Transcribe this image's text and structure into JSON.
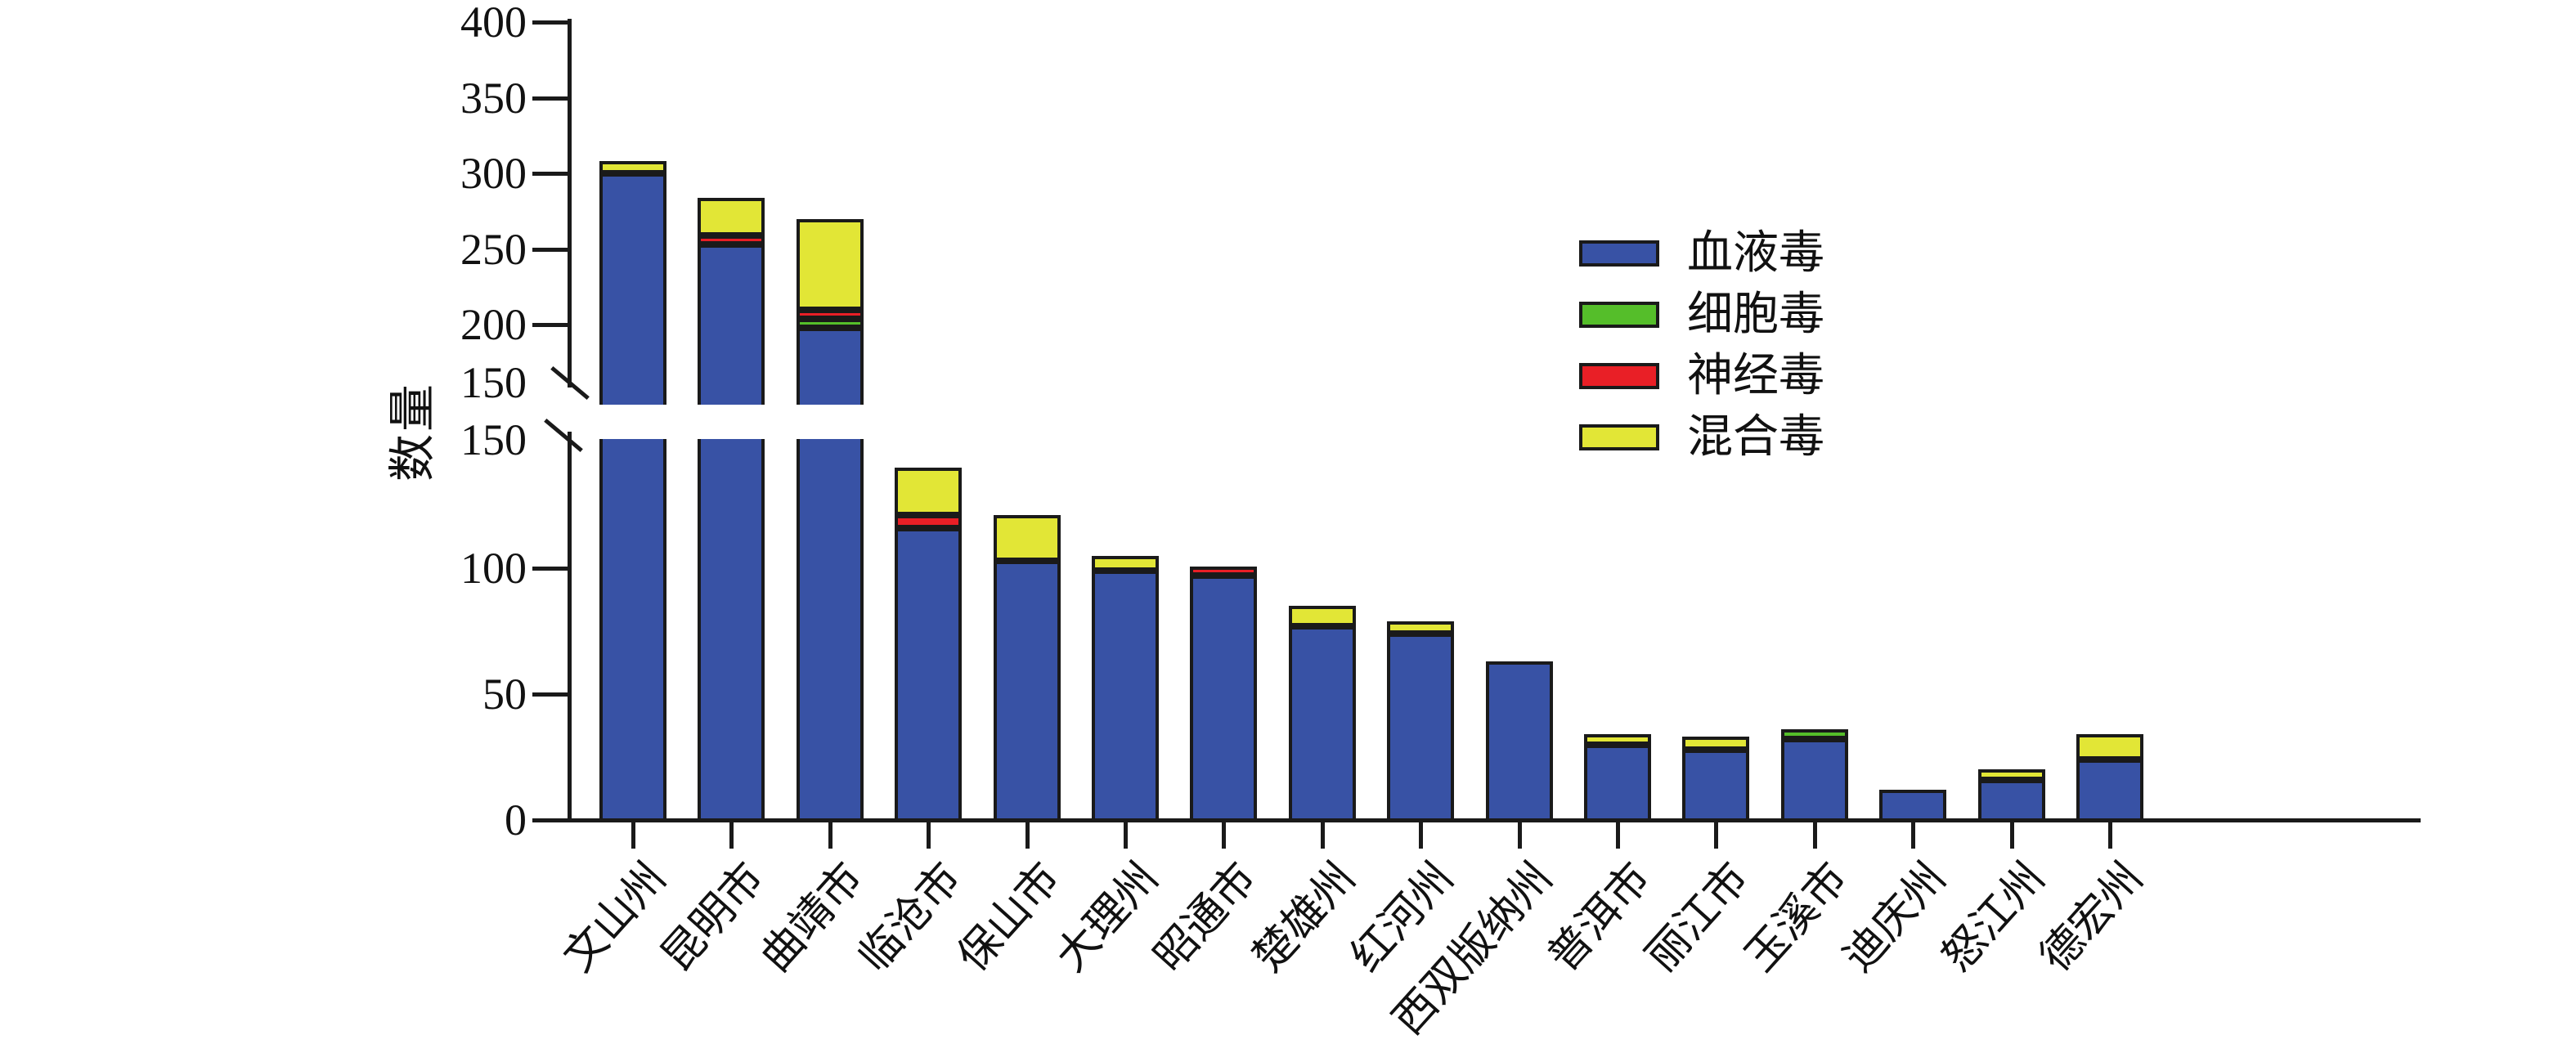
{
  "chart_data": {
    "type": "bar",
    "stacked": true,
    "orientation": "vertical",
    "title": "",
    "xlabel": "",
    "ylabel": "数量",
    "grid": false,
    "legend_position": "inside-upper-right",
    "axis_break": {
      "lower_range": [
        0,
        150
      ],
      "upper_range": [
        150,
        400
      ],
      "upper_tick_labels": [
        "400",
        "350",
        "300",
        "250",
        "200",
        "150"
      ],
      "lower_tick_labels": [
        "150",
        "100",
        "50",
        "0"
      ]
    },
    "categories": [
      "文山州",
      "昆明市",
      "曲靖市",
      "临沧市",
      "保山市",
      "大理州",
      "昭通市",
      "楚雄州",
      "红河州",
      "西双版纳州",
      "普洱市",
      "丽江市",
      "玉溪市",
      "迪庆州",
      "怒江州",
      "德宏州"
    ],
    "series": [
      {
        "name": "血液毒",
        "color": "#3852A5",
        "values": [
          300,
          256,
          202,
          116,
          103,
          99,
          97,
          77,
          74,
          63,
          30,
          28,
          32,
          12,
          16,
          24
        ]
      },
      {
        "name": "细胞毒",
        "color": "#55BE2A",
        "values": [
          0,
          0,
          4,
          0,
          0,
          0,
          0,
          0,
          0,
          0,
          0,
          0,
          4,
          0,
          0,
          0
        ]
      },
      {
        "name": "神经毒",
        "color": "#E91F26",
        "values": [
          0,
          3,
          4,
          5,
          0,
          0,
          3,
          0,
          0,
          0,
          0,
          0,
          0,
          0,
          0,
          0
        ]
      },
      {
        "name": "混合毒",
        "color": "#E2E636",
        "values": [
          8,
          25,
          60,
          19,
          18,
          6,
          0,
          8,
          5,
          0,
          4,
          5,
          0,
          0,
          4,
          10
        ]
      }
    ],
    "totals": [
      308,
      284,
      270,
      140,
      121,
      105,
      100,
      85,
      79,
      63,
      34,
      33,
      36,
      12,
      20,
      34
    ]
  },
  "y_axis": {
    "title": "数量",
    "upper_ticks": [
      "400",
      "350",
      "300",
      "250",
      "200",
      "150"
    ],
    "lower_ticks": [
      "150",
      "100",
      "50",
      "0"
    ]
  },
  "legend": {
    "items": [
      {
        "label": "血液毒",
        "color": "#3852A5"
      },
      {
        "label": "细胞毒",
        "color": "#55BE2A"
      },
      {
        "label": "神经毒",
        "color": "#E91F26"
      },
      {
        "label": "混合毒",
        "color": "#E2E636"
      }
    ]
  },
  "colors": {
    "ink": "#1a1a1a",
    "background": "#ffffff"
  }
}
